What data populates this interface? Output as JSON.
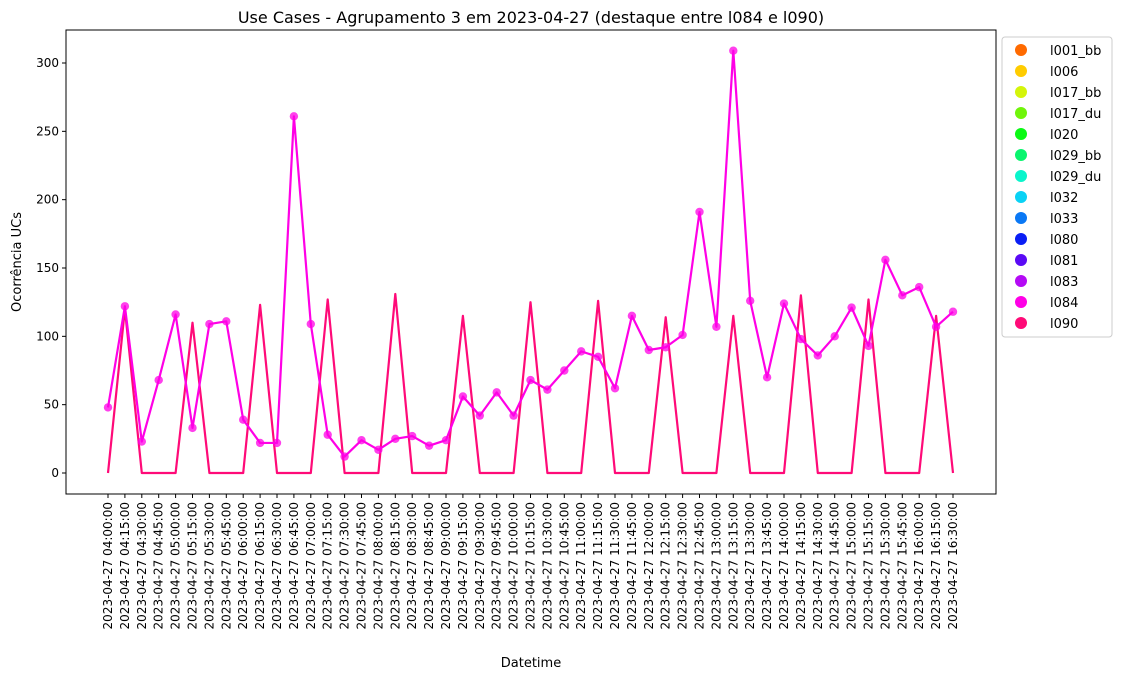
{
  "chart_data": {
    "type": "line",
    "title": "Use Cases - Agrupamento 3 em 2023-04-27 (destaque entre l084 e l090)",
    "xlabel": "Datetime",
    "ylabel": "Ocorrência UCs",
    "ylim": [
      -15,
      325
    ],
    "yticks": [
      0,
      50,
      100,
      150,
      200,
      250,
      300
    ],
    "legend_position": "outside-right",
    "grid": false,
    "categories": [
      "2023-04-27 04:00:00",
      "2023-04-27 04:15:00",
      "2023-04-27 04:30:00",
      "2023-04-27 04:45:00",
      "2023-04-27 05:00:00",
      "2023-04-27 05:15:00",
      "2023-04-27 05:30:00",
      "2023-04-27 05:45:00",
      "2023-04-27 06:00:00",
      "2023-04-27 06:15:00",
      "2023-04-27 06:30:00",
      "2023-04-27 06:45:00",
      "2023-04-27 07:00:00",
      "2023-04-27 07:15:00",
      "2023-04-27 07:30:00",
      "2023-04-27 07:45:00",
      "2023-04-27 08:00:00",
      "2023-04-27 08:15:00",
      "2023-04-27 08:30:00",
      "2023-04-27 08:45:00",
      "2023-04-27 09:00:00",
      "2023-04-27 09:15:00",
      "2023-04-27 09:30:00",
      "2023-04-27 09:45:00",
      "2023-04-27 10:00:00",
      "2023-04-27 10:15:00",
      "2023-04-27 10:30:00",
      "2023-04-27 10:45:00",
      "2023-04-27 11:00:00",
      "2023-04-27 11:15:00",
      "2023-04-27 11:30:00",
      "2023-04-27 11:45:00",
      "2023-04-27 12:00:00",
      "2023-04-27 12:15:00",
      "2023-04-27 12:30:00",
      "2023-04-27 12:45:00",
      "2023-04-27 13:00:00",
      "2023-04-27 13:15:00",
      "2023-04-27 13:30:00",
      "2023-04-27 13:45:00",
      "2023-04-27 14:00:00",
      "2023-04-27 14:15:00",
      "2023-04-27 14:30:00",
      "2023-04-27 14:45:00",
      "2023-04-27 15:00:00",
      "2023-04-27 15:15:00",
      "2023-04-27 15:30:00",
      "2023-04-27 15:45:00",
      "2023-04-27 16:00:00",
      "2023-04-27 16:15:00",
      "2023-04-27 16:30:00"
    ],
    "series": [
      {
        "name": "l084",
        "color": "#ff00e6",
        "markers": true,
        "values": [
          48,
          122,
          23,
          68,
          116,
          33,
          109,
          111,
          39,
          22,
          22,
          261,
          109,
          28,
          12,
          24,
          17,
          25,
          27,
          20,
          24,
          56,
          42,
          59,
          42,
          68,
          61,
          75,
          89,
          85,
          62,
          115,
          90,
          92,
          101,
          191,
          107,
          309,
          126,
          70,
          124,
          98,
          86,
          100,
          121,
          93,
          156,
          130,
          136,
          107,
          118
        ]
      },
      {
        "name": "l090",
        "color": "#ff0a78",
        "markers": false,
        "values": [
          0,
          120,
          0,
          0,
          0,
          110,
          0,
          0,
          0,
          123,
          0,
          0,
          0,
          127,
          0,
          0,
          0,
          131,
          0,
          0,
          0,
          115,
          0,
          0,
          0,
          125,
          0,
          0,
          0,
          126,
          0,
          0,
          0,
          114,
          0,
          0,
          0,
          115,
          0,
          0,
          0,
          130,
          0,
          0,
          0,
          127,
          0,
          0,
          0,
          115,
          0
        ]
      }
    ],
    "legend": [
      {
        "name": "l001_bb",
        "color": "#ff6a00"
      },
      {
        "name": "l006",
        "color": "#ffcc00"
      },
      {
        "name": "l017_bb",
        "color": "#d4f50a"
      },
      {
        "name": "l017_du",
        "color": "#70f50a"
      },
      {
        "name": "l020",
        "color": "#0afa14"
      },
      {
        "name": "l029_bb",
        "color": "#0af56e"
      },
      {
        "name": "l029_du",
        "color": "#0af5cc"
      },
      {
        "name": "l032",
        "color": "#0ad2f5"
      },
      {
        "name": "l033",
        "color": "#0a78f5"
      },
      {
        "name": "l080",
        "color": "#0a1ef5"
      },
      {
        "name": "l081",
        "color": "#5a0af5"
      },
      {
        "name": "l083",
        "color": "#b40af5"
      },
      {
        "name": "l084",
        "color": "#ff00e6"
      },
      {
        "name": "l090",
        "color": "#ff0a78"
      }
    ]
  }
}
